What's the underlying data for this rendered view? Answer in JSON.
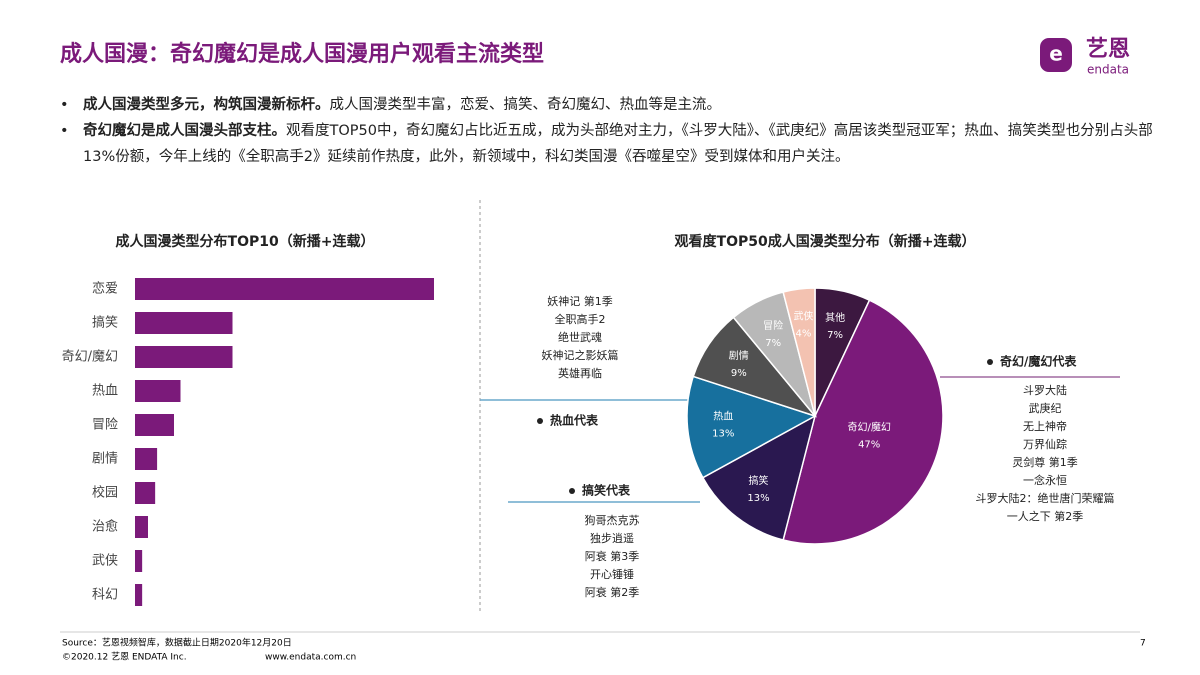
{
  "header": {
    "title": "成人国漫：奇幻魔幻是成人国漫用户观看主流类型",
    "logo": "艺恩",
    "logo_sub": "endata"
  },
  "bullets": [
    {
      "lead": "成人国漫类型多元，构筑国漫新标杆。",
      "text": "成人国漫类型丰富，恋爱、搞笑、奇幻魔幻、热血等是主流。"
    },
    {
      "lead": "奇幻魔幻是成人国漫头部支柱。",
      "text": "观看度TOP50中，奇幻魔幻占比近五成，成为头部绝对主力，《斗罗大陆》、《武庚纪》高居该类型冠亚军；热血、搞笑类型也分别占头部13%份额，今年上线的《全职高手2》延续前作热度，此外，新领域中，科幻类国漫《吞噬星空》受到媒体和用户关注。"
    }
  ],
  "chart_data": [
    {
      "type": "bar",
      "title": "成人国漫类型分布TOP10（新播+连载）",
      "categories": [
        "恋爱",
        "搞笑",
        "奇幻/魔幻",
        "热血",
        "冒险",
        "剧情",
        "校园",
        "治愈",
        "武侠",
        "科幻"
      ],
      "values": [
        46,
        15,
        15,
        7,
        6,
        3.4,
        3.1,
        2,
        1.1,
        1.1
      ],
      "xlim": [
        0,
        50
      ],
      "color": "#7b1a7a"
    },
    {
      "type": "pie",
      "title": "观看度TOP50成人国漫类型分布（新播+连载）",
      "categories": [
        "其他",
        "奇幻/魔幻",
        "搞笑",
        "热血",
        "剧情",
        "冒险",
        "武侠"
      ],
      "values": [
        7,
        47,
        13,
        13,
        9,
        7,
        4
      ],
      "value_labels": [
        "7%",
        "47%",
        "13%",
        "13%",
        "9%",
        "7%",
        "4%"
      ],
      "colors": [
        "#3c1840",
        "#7b1a7a",
        "#2a1850",
        "#17709e",
        "#505050",
        "#b8b8b8",
        "#f3c2b1"
      ],
      "annotations": [
        {
          "title": "热血代表",
          "items": [
            "妖神记 第1季",
            "全职高手2",
            "绝世武魂",
            "妖神记之影妖篇",
            "英雄再临"
          ]
        },
        {
          "title": "搞笑代表",
          "items": [
            "狗哥杰克苏",
            "独步逍遥",
            "阿衰 第3季",
            "开心锤锤",
            "阿衰 第2季"
          ]
        },
        {
          "title": "奇幻/魔幻代表",
          "items": [
            "斗罗大陆",
            "武庚纪",
            "无上神帝",
            "万界仙踪",
            "灵剑尊 第1季",
            "一念永恒",
            "斗罗大陆2：绝世唐门荣耀篇",
            "一人之下 第2季"
          ]
        }
      ]
    }
  ],
  "footer": {
    "source": "Source：艺恩视频智库，数据截止日期2020年12月20日",
    "copyright": "©2020.12 艺恩 ENDATA Inc.",
    "website": "www.endata.com.cn",
    "page": "7"
  }
}
